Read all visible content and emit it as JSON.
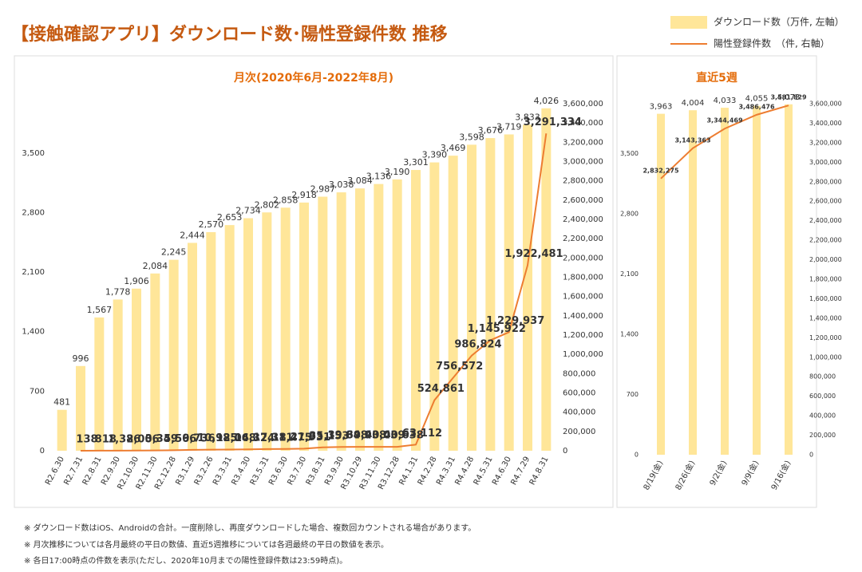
{
  "title": "【接触確認アプリ】ダウンロード数･陽性登録件数 推移",
  "notes": [
    "※ ダウンロード数はiOS、Androidの合計。一度削除し、再度ダウンロードした場合、複数回カウントされる場合があります。",
    "※ 月次推移については各月最終の平日の数値、直近5週推移については各週最終の平日の数値を表示。",
    "※ 各日17:00時点の件数を表示(ただし、2020年10月までの陽性登録件数は23:59時点)。"
  ],
  "chart_data": [
    {
      "type": "bar",
      "title": "月次(2020年6月-2022年8月)",
      "categories": [
        "R2.6.30",
        "R2.7.31",
        "R2.8.31",
        "R2.9.30",
        "R2.10.30",
        "R2.11.30",
        "R2.12.28",
        "R3.1.29",
        "R3.2.26",
        "R3.3.31",
        "R3.4.30",
        "R3.5.31",
        "R3.6.30",
        "R3.7.30",
        "R3.8.31",
        "R3.9.30",
        "R3.10.29",
        "R3.11.30",
        "R3.12.28",
        "R4.1.31",
        "R4.2.28",
        "R4.3.31",
        "R4.4.28",
        "R4.5.31",
        "R4.6.30",
        "R4.7.29",
        "R4.8.31"
      ],
      "series": [
        {
          "name": "ダウンロード数（万件, 左軸）",
          "color": "#ffe699",
          "type": "bar",
          "axis": "y",
          "values": [
            481,
            996,
            1567,
            1778,
            1906,
            2084,
            2245,
            2444,
            2570,
            2653,
            2734,
            2802,
            2858,
            2918,
            2987,
            3038,
            3084,
            3136,
            3190,
            3301,
            3390,
            3469,
            3598,
            3676,
            3719,
            3833,
            4026
          ],
          "value_labels": [
            "481",
            "996",
            "1,567",
            "1,778",
            "1,906",
            "2,084",
            "2,245",
            "2,444",
            "2,570",
            "2,653",
            "2,734",
            "2,802",
            "2,858",
            "2,918",
            "2,987",
            "3,038",
            "3,084",
            "3,136",
            "3,190",
            "3,301",
            "3,390",
            "3,469",
            "3,598",
            "3,676",
            "3,719",
            "3,833",
            "4,026"
          ]
        },
        {
          "name": "陽性登録件数　（件, 右軸）",
          "color": "#ed7d31",
          "type": "line",
          "axis": "y2",
          "values": [
            null,
            138,
            818,
            1386,
            2006,
            3349,
            5566,
            9736,
            10985,
            12068,
            14324,
            17311,
            18475,
            21931,
            35153,
            39648,
            39938,
            40039,
            40638,
            63112,
            524861,
            756572,
            986824,
            1145922,
            1229937,
            1922481,
            3291334
          ],
          "value_labels": [
            null,
            "138",
            "818",
            "1,386",
            "2,006",
            "3,349",
            "5,566",
            "9,736",
            "10,985",
            "12,068",
            "14,324",
            "17,311",
            "18,475",
            "21,931",
            "35,153",
            "39,648",
            "39,938",
            "40,039",
            "40,638",
            "63,112",
            "524,861",
            "756,572",
            "986,824",
            "1,145,922",
            "1,229,937",
            "1,922,481",
            "3,291,334"
          ]
        }
      ],
      "ylim": [
        0,
        4080
      ],
      "yticks": [
        0,
        700,
        {
          "value": 1400,
          "label": "1,400"
        },
        {
          "value": 2100,
          "label": "2,100"
        },
        {
          "value": 2800,
          "label": "2,800"
        },
        {
          "value": 3500,
          "label": "3,500"
        }
      ],
      "y2lim": [
        0,
        3600000
      ],
      "y2ticks": [
        0,
        {
          "value": 200000,
          "label": "200,000"
        },
        {
          "value": 400000,
          "label": "400,000"
        },
        {
          "value": 600000,
          "label": "600,000"
        },
        {
          "value": 800000,
          "label": "800,000"
        },
        {
          "value": 1000000,
          "label": "1,000,000"
        },
        {
          "value": 1200000,
          "label": "1,200,000"
        },
        {
          "value": 1400000,
          "label": "1,400,000"
        },
        {
          "value": 1600000,
          "label": "1,600,000"
        },
        {
          "value": 1800000,
          "label": "1,800,000"
        },
        {
          "value": 2000000,
          "label": "2,000,000"
        },
        {
          "value": 2200000,
          "label": "2,200,000"
        },
        {
          "value": 2400000,
          "label": "2,400,000"
        },
        {
          "value": 2600000,
          "label": "2,600,000"
        },
        {
          "value": 2800000,
          "label": "2,800,000"
        },
        {
          "value": 3000000,
          "label": "3,000,000"
        },
        {
          "value": 3200000,
          "label": "3,200,000"
        },
        {
          "value": 3400000,
          "label": "3,400,000"
        },
        {
          "value": 3600000,
          "label": "3,600,000"
        }
      ]
    },
    {
      "type": "bar",
      "title": "直近5週",
      "categories": [
        "8/19(金)",
        "8/26(金)",
        "9/2(金)",
        "9/9(金)",
        "9/16(金)"
      ],
      "series": [
        {
          "color": "#ffe699",
          "type": "bar",
          "axis": "y",
          "values": [
            3963,
            4004,
            4033,
            4055,
            4073
          ],
          "value_labels": [
            "3,963",
            "4,004",
            "4,033",
            "4,055",
            "4,073"
          ]
        },
        {
          "color": "#ed7d31",
          "type": "line",
          "axis": "y2",
          "values": [
            2832275,
            3143363,
            3344469,
            3486476,
            3581829
          ],
          "value_labels": [
            "2,832,275",
            "3,143,363",
            "3,344,469",
            "3,486,476",
            "3,581,829"
          ]
        }
      ],
      "ylim": [
        0,
        4080
      ],
      "yticks": [
        0,
        700,
        {
          "value": 1400,
          "label": "1,400"
        },
        {
          "value": 2100,
          "label": "2,100"
        },
        {
          "value": 2800,
          "label": "2,800"
        },
        {
          "value": 3500,
          "label": "3,500"
        }
      ],
      "y2lim": [
        0,
        3600000
      ],
      "y2ticks": [
        0,
        {
          "value": 200000,
          "label": "200,000"
        },
        {
          "value": 400000,
          "label": "400,000"
        },
        {
          "value": 600000,
          "label": "600,000"
        },
        {
          "value": 800000,
          "label": "800,000"
        },
        {
          "value": 1000000,
          "label": "1,000,000"
        },
        {
          "value": 1200000,
          "label": "1,200,000"
        },
        {
          "value": 1400000,
          "label": "1,400,000"
        },
        {
          "value": 1600000,
          "label": "1,600,000"
        },
        {
          "value": 1800000,
          "label": "1,800,000"
        },
        {
          "value": 2000000,
          "label": "2,000,000"
        },
        {
          "value": 2200000,
          "label": "2,200,000"
        },
        {
          "value": 2400000,
          "label": "2,400,000"
        },
        {
          "value": 2600000,
          "label": "2,600,000"
        },
        {
          "value": 2800000,
          "label": "2,800,000"
        },
        {
          "value": 3000000,
          "label": "3,000,000"
        },
        {
          "value": 3200000,
          "label": "3,200,000"
        },
        {
          "value": 3400000,
          "label": "3,400,000"
        },
        {
          "value": 3600000,
          "label": "3,600,000"
        }
      ]
    }
  ]
}
